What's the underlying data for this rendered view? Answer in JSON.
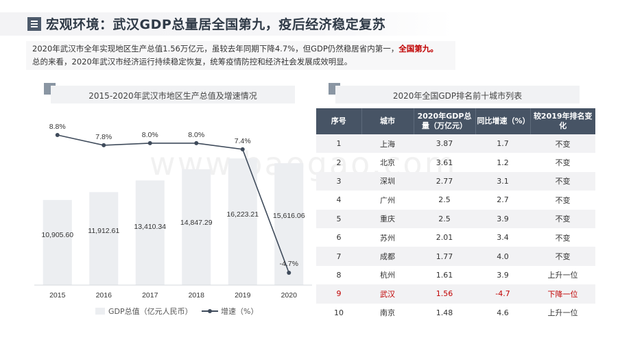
{
  "header": {
    "title": "宏观环境：武汉GDP总量居全国第九，疫后经济稳定复苏",
    "icon": "menu-icon"
  },
  "summary": {
    "line1_main": "2020年武汉市全年实现地区生产总值1.56万亿元，虽较去年同期下降4.7%，但GDP仍然稳居省内第一，",
    "line1_highlight": "全国第九。",
    "line2": "总的来看，2020年武汉市经济运行持续稳定恢复，统筹疫情防控和经济社会发展成效明显。",
    "highlight_color": "#c00000"
  },
  "watermark": "www.baogao.com",
  "left_section": {
    "title": "2015-2020年武汉市地区生产总值及增速情况"
  },
  "right_section": {
    "title": "2020年全国GDP排名前十城市列表"
  },
  "chart_data": {
    "type": "bar",
    "title": "2015-2020年武汉市地区生产总值及增速情况",
    "categories": [
      "2015",
      "2016",
      "2017",
      "2018",
      "2019",
      "2020"
    ],
    "series": [
      {
        "name": "GDP总值（亿元人民币）",
        "type": "bar",
        "values": [
          10905.6,
          11912.61,
          13410.34,
          14847.29,
          16223.21,
          15616.06
        ],
        "labels": [
          "10,905.60",
          "11,912.61",
          "13,410.34",
          "14,847.29",
          "16,223.21",
          "15,616.06"
        ],
        "color": "#eceef1"
      },
      {
        "name": "增速（%）",
        "type": "line",
        "values": [
          8.8,
          7.8,
          8.0,
          8.0,
          7.4,
          -4.7
        ],
        "labels": [
          "8.8%",
          "7.8%",
          "8.0%",
          "8.0%",
          "7.4%",
          "-4.7%"
        ],
        "color": "#3f4b5b"
      }
    ],
    "legend": [
      "GDP总值（亿元人民币）",
      "增速（%）"
    ],
    "legend_position": "bottom",
    "grid": false
  },
  "table": {
    "headers": [
      "序号",
      "城市",
      "2020年GDP总量（万亿元）",
      "同比增速（%）",
      "较2019年排名变化"
    ],
    "rows": [
      [
        "1",
        "上海",
        "3.87",
        "1.7",
        "不变"
      ],
      [
        "2",
        "北京",
        "3.61",
        "1.2",
        "不变"
      ],
      [
        "3",
        "深圳",
        "2.77",
        "3.1",
        "不变"
      ],
      [
        "4",
        "广州",
        "2.5",
        "2.7",
        "不变"
      ],
      [
        "5",
        "重庆",
        "2.5",
        "3.9",
        "不变"
      ],
      [
        "6",
        "苏州",
        "2.01",
        "3.4",
        "不变"
      ],
      [
        "7",
        "成都",
        "1.77",
        "4.0",
        "不变"
      ],
      [
        "8",
        "杭州",
        "1.61",
        "3.9",
        "上升一位"
      ],
      [
        "9",
        "武汉",
        "1.56",
        "-4.7",
        "下降一位"
      ],
      [
        "10",
        "南京",
        "1.48",
        "4.6",
        "上升一位"
      ]
    ],
    "highlight_row": 8,
    "header_color": "#475465",
    "highlight_color": "#c00000"
  }
}
